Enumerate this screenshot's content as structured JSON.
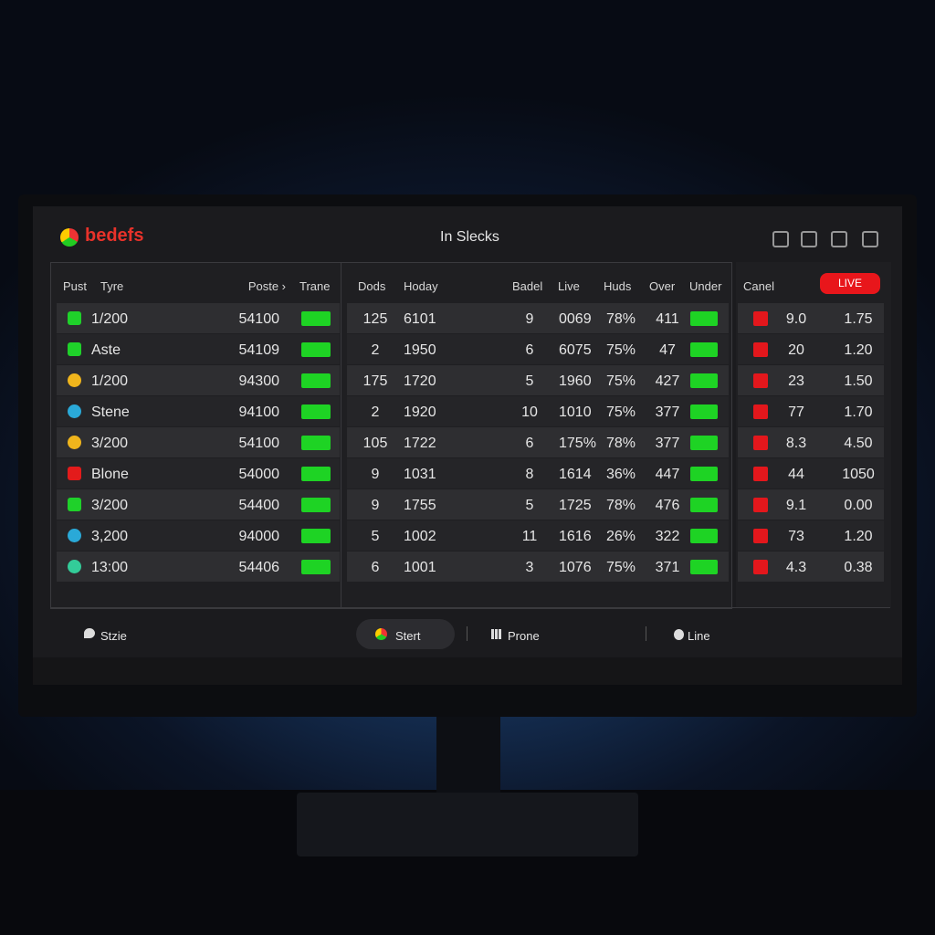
{
  "header": {
    "logo": "bedefs",
    "title": "In Slecks"
  },
  "left_table": {
    "headers": [
      "Pust",
      "Tyre",
      "Poste ›",
      "Trane"
    ],
    "rows": [
      [
        "1/200",
        "54100"
      ],
      [
        "Aste",
        "54109"
      ],
      [
        "1/200",
        "94300"
      ],
      [
        "Stene",
        "94100"
      ],
      [
        "3/200",
        "54100"
      ],
      [
        "Blone",
        "54000"
      ],
      [
        "3/200",
        "54400"
      ],
      [
        "3,200",
        "94000"
      ],
      [
        "13:00",
        "54406"
      ]
    ]
  },
  "middle_table": {
    "headers": [
      "Dods",
      "Hoday",
      "Badel",
      "Live",
      "Huds",
      "Over",
      "Under"
    ],
    "rows": [
      [
        "125",
        "6101",
        "9",
        "0069",
        "78%",
        "411"
      ],
      [
        "2",
        "1950",
        "6",
        "6075",
        "75%",
        "47"
      ],
      [
        "175",
        "1720",
        "5",
        "1960",
        "75%",
        "427"
      ],
      [
        "2",
        "1920",
        "10",
        "1010",
        "75%",
        "377"
      ],
      [
        "105",
        "1722",
        "6",
        "175%",
        "78%",
        "377"
      ],
      [
        "9",
        "1031",
        "8",
        "1614",
        "36%",
        "447"
      ],
      [
        "9",
        "1755",
        "5",
        "1725",
        "78%",
        "476"
      ],
      [
        "5",
        "1002",
        "11",
        "1616",
        "26%",
        "322"
      ],
      [
        "6",
        "1001",
        "3",
        "1076",
        "75%",
        "371"
      ]
    ]
  },
  "right_table": {
    "header": "Canel",
    "badge": "LIVE",
    "rows": [
      [
        "9.0",
        "1.75"
      ],
      [
        "20",
        "1.20"
      ],
      [
        "23",
        "1.50"
      ],
      [
        "77",
        "1.70"
      ],
      [
        "8.3",
        "4.50"
      ],
      [
        "44",
        "1050"
      ],
      [
        "9.1",
        "0.00"
      ],
      [
        "73",
        "1.20"
      ],
      [
        "4.3",
        "0.38"
      ]
    ]
  },
  "footer": {
    "items": [
      "Stzie",
      "Stert",
      "Prone",
      "Line"
    ]
  }
}
